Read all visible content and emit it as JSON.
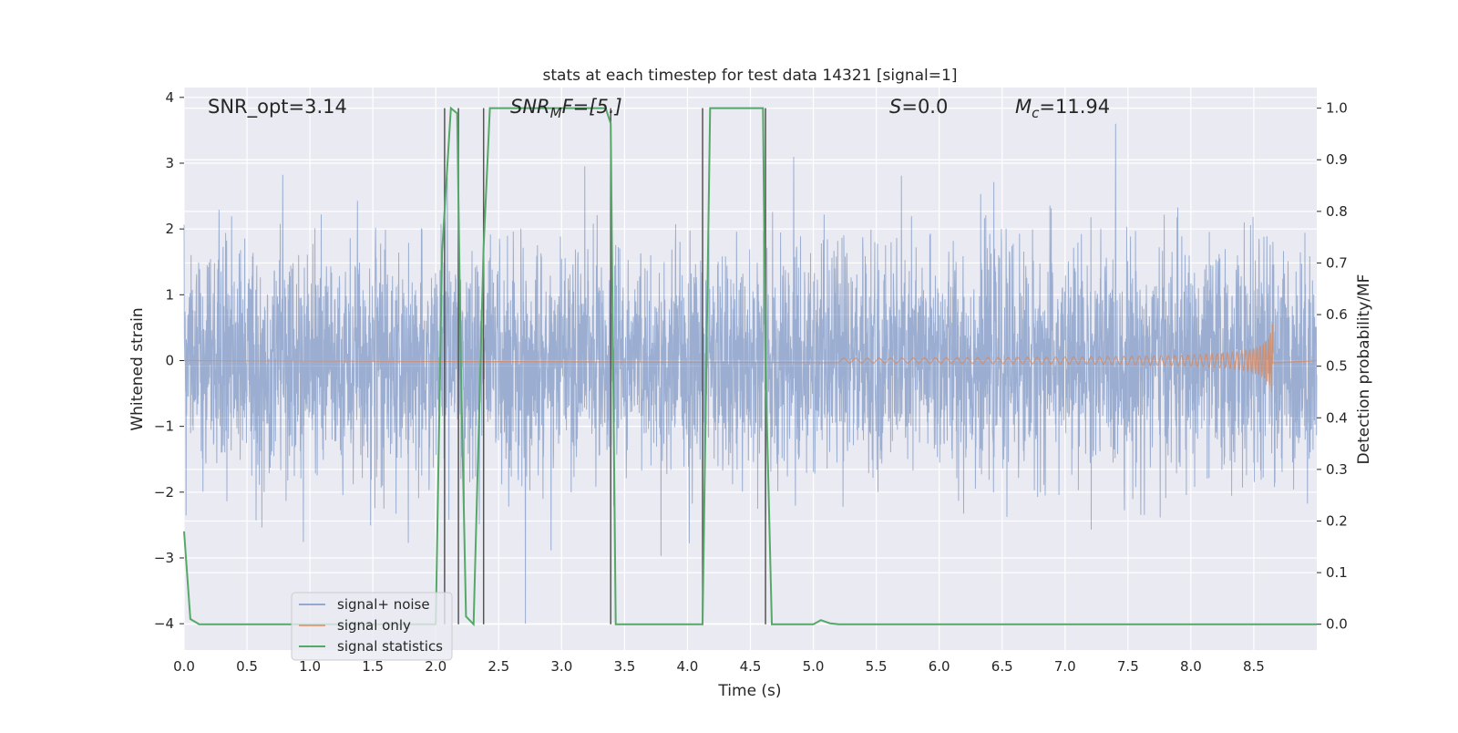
{
  "chart_data": {
    "type": "line",
    "title": "stats at each timestep for test data 14321 [signal=1]",
    "xlabel": "Time (s)",
    "ylabel_left": "Whitened strain",
    "ylabel_right": "Detection probability/MF",
    "xlim": [
      0.0,
      9.0
    ],
    "ylim_left": [
      -4.4,
      4.15
    ],
    "ylim_right": [
      -0.05,
      1.04
    ],
    "xticks": [
      "0.0",
      "0.5",
      "1.0",
      "1.5",
      "2.0",
      "2.5",
      "3.0",
      "3.5",
      "4.0",
      "4.5",
      "5.0",
      "5.5",
      "6.0",
      "6.5",
      "7.0",
      "7.5",
      "8.0",
      "8.5"
    ],
    "xtick_values": [
      0.0,
      0.5,
      1.0,
      1.5,
      2.0,
      2.5,
      3.0,
      3.5,
      4.0,
      4.5,
      5.0,
      5.5,
      6.0,
      6.5,
      7.0,
      7.5,
      8.0,
      8.5
    ],
    "yticks_left": [
      "4",
      "3",
      "2",
      "1",
      "0",
      "−1",
      "−2",
      "−3",
      "−4"
    ],
    "ytick_values_left": [
      4,
      3,
      2,
      1,
      0,
      -1,
      -2,
      -3,
      -4
    ],
    "yticks_right": [
      "1.0",
      "0.9",
      "0.8",
      "0.7",
      "0.6",
      "0.5",
      "0.4",
      "0.3",
      "0.2",
      "0.1",
      "0.0"
    ],
    "ytick_values_right": [
      1.0,
      0.9,
      0.8,
      0.7,
      0.6,
      0.5,
      0.4,
      0.3,
      0.2,
      0.1,
      0.0
    ],
    "grid": true,
    "legend_position": "lower-left",
    "annotations": {
      "snr_opt": "SNR_opt=3.14",
      "snr_mf": "SNR",
      "snr_mf_sub": "M",
      "snr_mf_rest": "F=[5.]",
      "s_label": "S",
      "s_value": "=0.0",
      "mc_label": "M",
      "mc_sub": "c",
      "mc_value": "=11.94"
    },
    "colors": {
      "background": "#eaeaf2",
      "grid": "#ffffff",
      "noise": "#4c72b0",
      "signal": "#dd8452",
      "statistics": "#55a868",
      "vlines": "#555555"
    },
    "series": [
      {
        "name": "signal+ noise",
        "description_axis": "left",
        "noise_std": 0.85,
        "noise_peak_range": [
          -4.0,
          3.6
        ],
        "x_range": [
          0.0,
          9.0
        ]
      },
      {
        "name": "signal only",
        "description_axis": "left",
        "chirp_start": 5.2,
        "chirp_end": 8.65,
        "peak_amplitude": 0.6
      },
      {
        "name": "signal statistics",
        "description_axis": "right",
        "x": [
          0.0,
          0.05,
          0.12,
          0.3,
          1.0,
          2.0,
          2.05,
          2.12,
          2.17,
          2.2,
          2.24,
          2.3,
          2.38,
          2.43,
          3.0,
          3.35,
          3.39,
          3.43,
          3.5,
          4.0,
          4.12,
          4.18,
          4.6,
          4.62,
          4.67,
          4.75,
          4.95,
          5.0,
          5.06,
          5.13,
          5.2,
          5.5,
          9.0
        ],
        "y": [
          0.18,
          0.01,
          0.0,
          0.0,
          0.0,
          0.0,
          0.72,
          1.0,
          0.99,
          0.5,
          0.015,
          0.0,
          0.73,
          1.0,
          1.0,
          1.0,
          0.97,
          0.0,
          0.0,
          0.0,
          0.0,
          1.0,
          1.0,
          0.5,
          0.0,
          0.0,
          0.0,
          0.0,
          0.008,
          0.002,
          0.0,
          0.0,
          0.0
        ]
      }
    ],
    "vlines": [
      2.07,
      2.18,
      2.38,
      3.39,
      4.12,
      4.62
    ]
  },
  "legend": {
    "noise_label": "signal+ noise",
    "signal_label": "signal only",
    "stats_label": "signal statistics"
  }
}
